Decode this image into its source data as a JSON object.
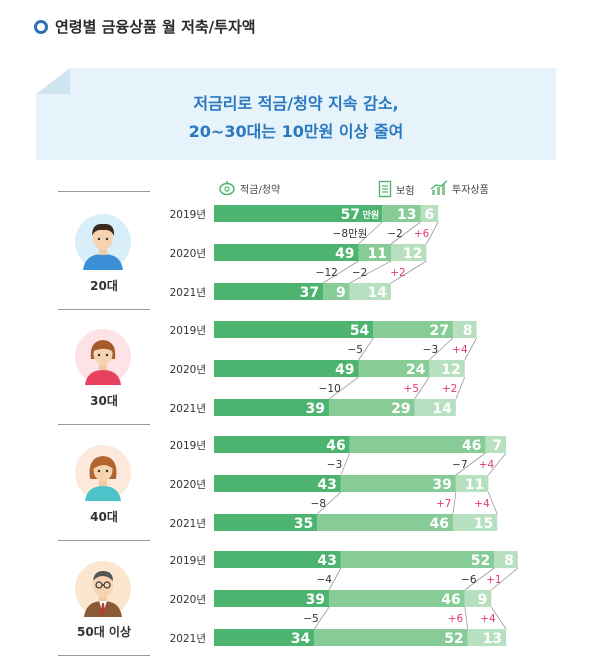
{
  "title": "연령별 금융상품 월 저축/투자액",
  "banner": {
    "line1": "저금리로 적금/청약 지속 감소,",
    "line2": "20~30대는 10만원 이상 줄여"
  },
  "legend": {
    "savings": "적금/청약",
    "insurance": "보험",
    "investment": "투자상품"
  },
  "colors": {
    "savings": "#4cb46f",
    "insurance": "#87cc97",
    "investment": "#b7e0c0",
    "change_negative": "#333333",
    "change_positive": "#e0397a",
    "title_accent": "#2f6fb5",
    "banner_text": "#2a79c0"
  },
  "chart_data": {
    "type": "bar",
    "orientation": "horizontal",
    "stacked": true,
    "unit_label": "만원",
    "series_names": [
      "적금/청약",
      "보험",
      "투자상품"
    ],
    "groups": [
      {
        "label": "20대",
        "icon": "young-man-avatar",
        "rows": [
          {
            "year": "2019년",
            "values": [
              57,
              13,
              6
            ]
          },
          {
            "year": "2020년",
            "values": [
              49,
              11,
              12
            ]
          },
          {
            "year": "2021년",
            "values": [
              37,
              9,
              14
            ]
          }
        ],
        "changes": [
          [
            "−8만원",
            "−2",
            "+6"
          ],
          [
            "−12",
            "−2",
            "+2"
          ]
        ]
      },
      {
        "label": "30대",
        "icon": "young-woman-avatar",
        "rows": [
          {
            "year": "2019년",
            "values": [
              54,
              27,
              8
            ]
          },
          {
            "year": "2020년",
            "values": [
              49,
              24,
              12
            ]
          },
          {
            "year": "2021년",
            "values": [
              39,
              29,
              14
            ]
          }
        ],
        "changes": [
          [
            "−5",
            "−3",
            "+4"
          ],
          [
            "−10",
            "+5",
            "+2"
          ]
        ]
      },
      {
        "label": "40대",
        "icon": "woman-avatar",
        "rows": [
          {
            "year": "2019년",
            "values": [
              46,
              46,
              7
            ]
          },
          {
            "year": "2020년",
            "values": [
              43,
              39,
              11
            ]
          },
          {
            "year": "2021년",
            "values": [
              35,
              46,
              15
            ]
          }
        ],
        "changes": [
          [
            "−3",
            "−7",
            "+4"
          ],
          [
            "−8",
            "+7",
            "+4"
          ]
        ]
      },
      {
        "label": "50대 이상",
        "icon": "older-man-avatar",
        "rows": [
          {
            "year": "2019년",
            "values": [
              43,
              52,
              8
            ]
          },
          {
            "year": "2020년",
            "values": [
              39,
              46,
              9
            ]
          },
          {
            "year": "2021년",
            "values": [
              34,
              52,
              13
            ]
          }
        ],
        "changes": [
          [
            "−4",
            "−6",
            "+1"
          ],
          [
            "−5",
            "+6",
            "+4"
          ]
        ]
      }
    ]
  }
}
